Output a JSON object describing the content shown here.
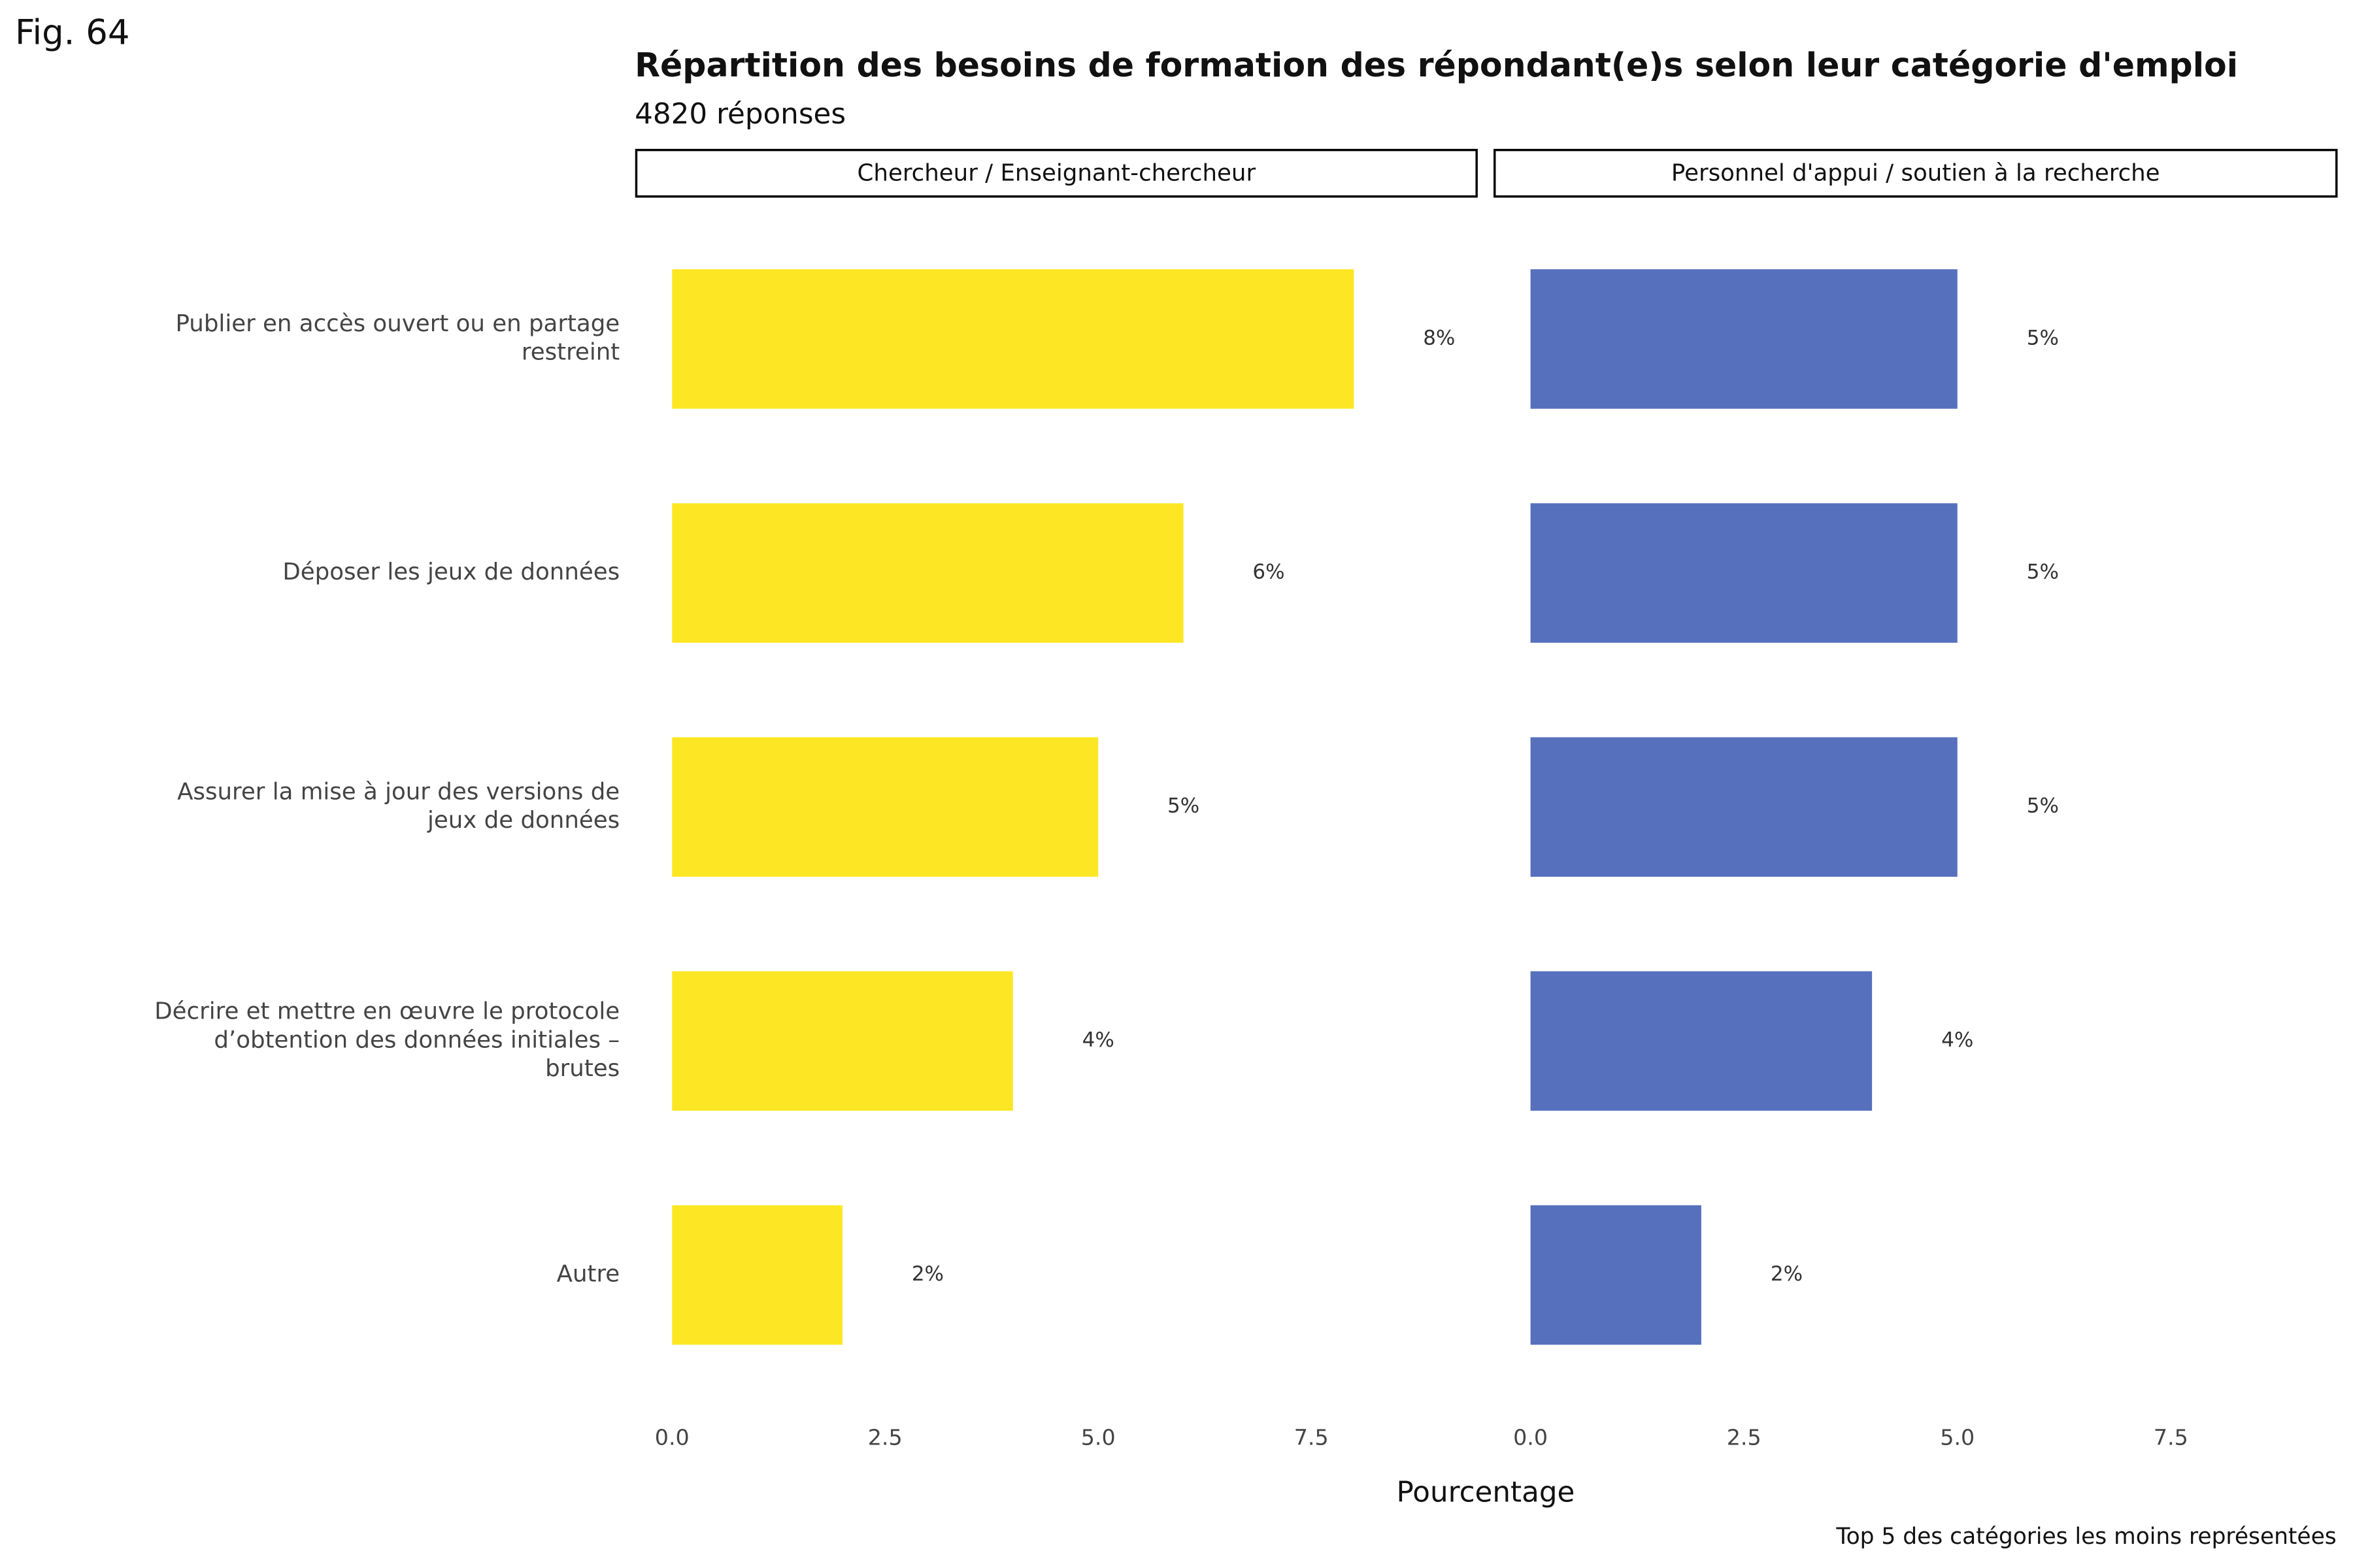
{
  "figure_label": "Fig. 64",
  "chart_data": {
    "type": "bar",
    "orientation": "horizontal",
    "title": "Répartition des besoins de formation des répondant(e)s selon leur catégorie d'emploi",
    "subtitle": "4820 réponses",
    "x_label": "Pourcentage",
    "caption": "Top 5 des catégories les moins représentées",
    "categories": [
      [
        "Publier en accès ouvert ou en partage",
        "restreint"
      ],
      [
        "Déposer les jeux de données"
      ],
      [
        "Assurer la mise à jour des versions de",
        "jeux de données"
      ],
      [
        "Décrire et mettre en œuvre le protocole",
        "d’obtention des données initiales –",
        "brutes"
      ],
      [
        "Autre"
      ]
    ],
    "series": [
      {
        "name": "Chercheur / Enseignant-chercheur",
        "color": "#fde725",
        "values": [
          8,
          6,
          5,
          4,
          2
        ],
        "value_labels": [
          "8%",
          "6%",
          "5%",
          "4%",
          "2%"
        ]
      },
      {
        "name": "Personnel d'appui / soutien à la recherche",
        "color": "#5670bd",
        "values": [
          5,
          5,
          5,
          4,
          2
        ],
        "value_labels": [
          "5%",
          "5%",
          "5%",
          "4%",
          "2%"
        ]
      }
    ],
    "xlim": [
      -0.42,
      9.44
    ],
    "xticks": [
      {
        "value": 0,
        "label": "0.0"
      },
      2.5,
      {
        "value": 5,
        "label": "5.0"
      },
      7.5
    ],
    "grid": false
  }
}
